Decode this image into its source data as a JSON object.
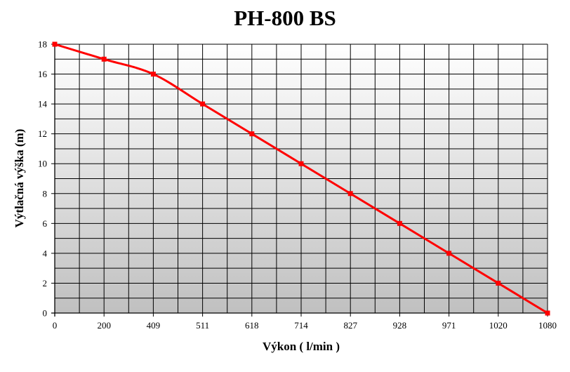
{
  "chart_data": {
    "type": "line",
    "title": "PH-800 BS",
    "xlabel": "Výkon ( l/min )",
    "ylabel": "Výtlačná výška (m)",
    "categories": [
      "0",
      "200",
      "409",
      "511",
      "618",
      "714",
      "827",
      "928",
      "971",
      "1020",
      "1080"
    ],
    "x_tick_labels": [
      "0",
      "200",
      "409",
      "511",
      "618",
      "714",
      "827",
      "928",
      "971",
      "1020",
      "1080"
    ],
    "y_tick_labels": [
      "0",
      "2",
      "4",
      "6",
      "8",
      "10",
      "12",
      "14",
      "16",
      "18"
    ],
    "ylim": [
      0,
      18
    ],
    "grid": true,
    "legend": "none",
    "series": [
      {
        "values": [
          18,
          17,
          16,
          14,
          12,
          10,
          8,
          6,
          4,
          2,
          0
        ],
        "color": "#ff0000",
        "marker": "square"
      }
    ],
    "colors": {
      "line": "#ff0000",
      "grid": "#000000",
      "plot_bg_top": "#ffffff",
      "plot_bg_bottom": "#c0c0c0"
    }
  }
}
